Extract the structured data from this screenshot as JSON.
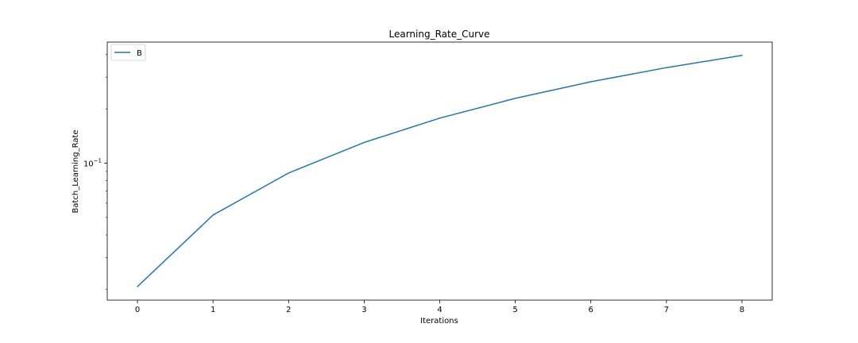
{
  "chart_data": {
    "type": "line",
    "title": "Learning_Rate_Curve",
    "xlabel": "Iterations",
    "ylabel": "Batch_Learning_Rate",
    "x": [
      0,
      1,
      2,
      3,
      4,
      5,
      6,
      7,
      8
    ],
    "series": [
      {
        "name": "B",
        "color": "#1f77b4",
        "values": [
          0.0207,
          0.0516,
          0.0882,
          0.1304,
          0.1777,
          0.2289,
          0.2829,
          0.3387,
          0.3962
        ]
      }
    ],
    "xlim": [
      -0.4,
      8.4
    ],
    "ylim": [
      0.0174,
      0.4696
    ],
    "yscale": "log",
    "xticks": [
      "0",
      "1",
      "2",
      "3",
      "4",
      "5",
      "6",
      "7",
      "8"
    ],
    "yticks": [
      {
        "value": 0.1,
        "base": "10",
        "exponent": "−1"
      }
    ],
    "grid": false,
    "legend_position": "top-left"
  }
}
